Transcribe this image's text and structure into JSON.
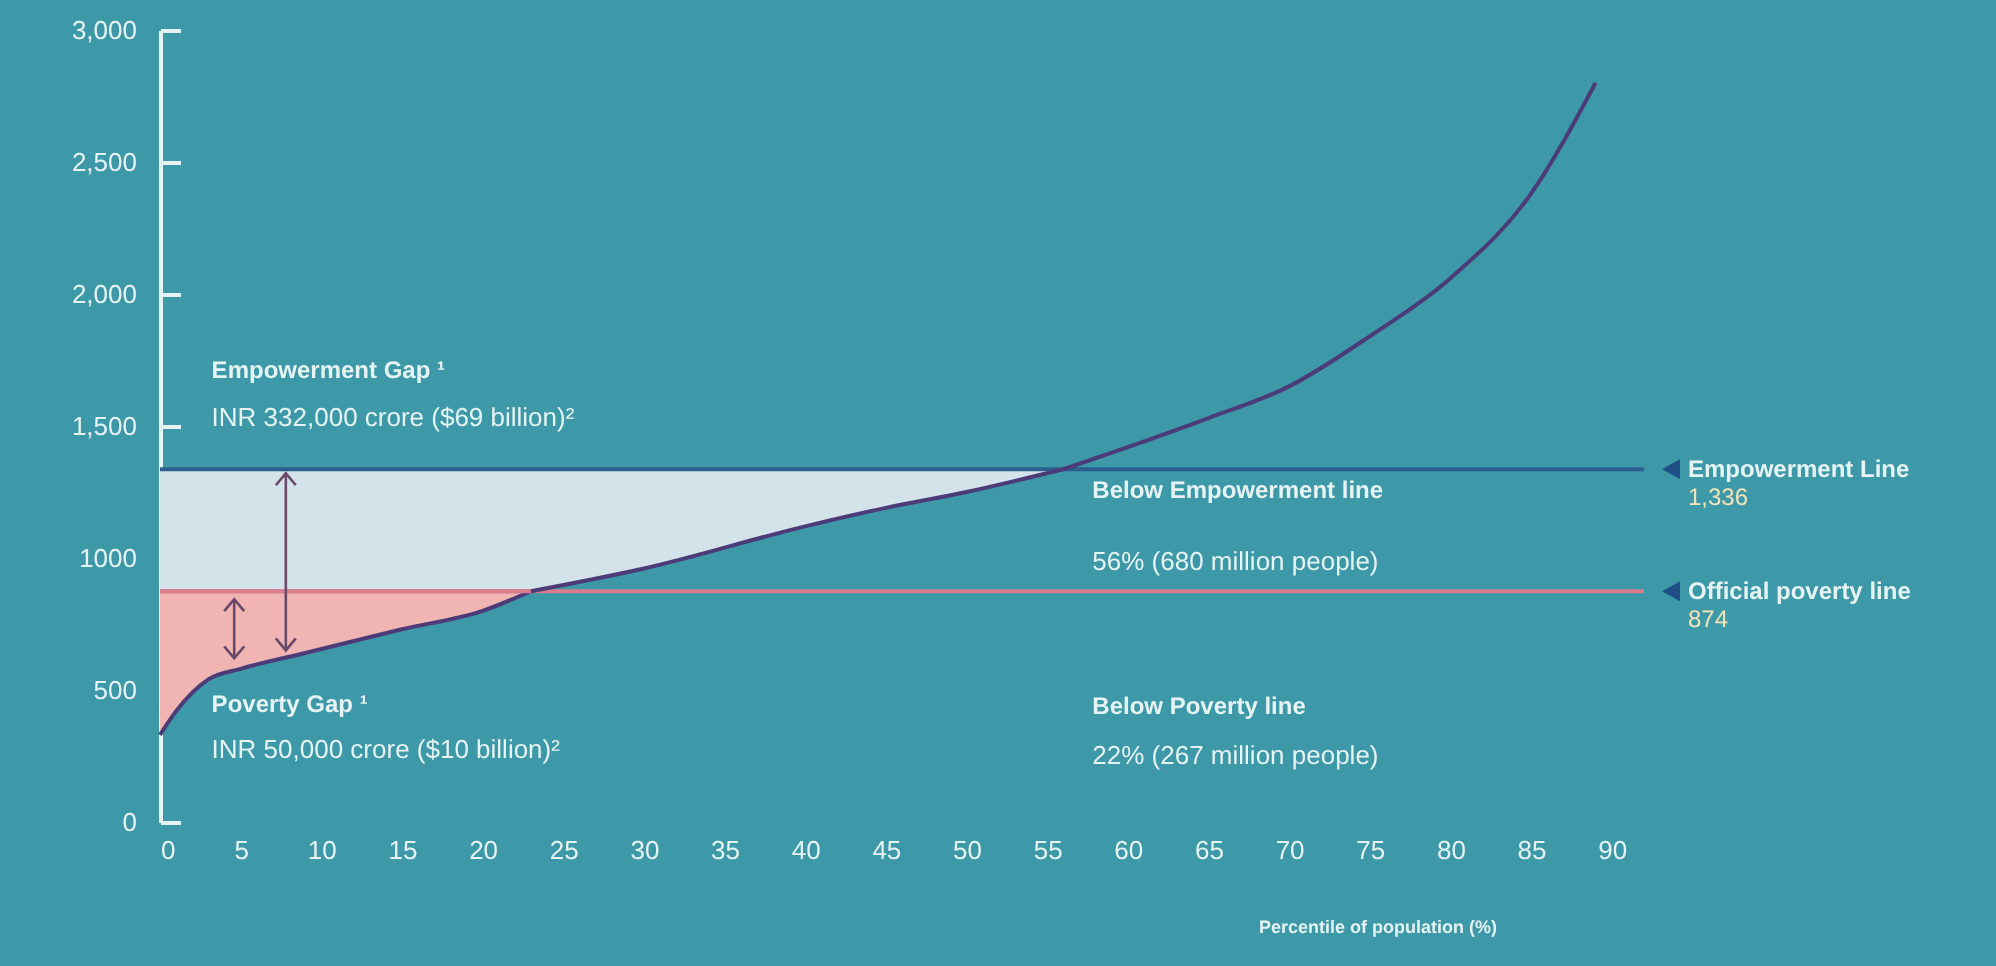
{
  "chart_data": {
    "type": "line",
    "xlabel": "Percentile of population (%)",
    "series": [
      {
        "color": "#4b3b78",
        "x": [
          0,
          1,
          2,
          3,
          5,
          9,
          15,
          20,
          23
        ],
        "values": [
          330,
          420,
          490,
          540,
          580,
          640,
          730,
          800,
          874
        ],
        "lower": [
          330,
          420,
          490,
          540,
          580,
          640,
          730,
          800,
          874
        ],
        "upper": [
          874,
          874,
          874,
          874,
          874,
          874,
          874,
          874,
          874
        ]
      },
      {
        "color": "#d97d8c",
        "x": [
          0,
          23
        ],
        "values": [
          874,
          874
        ],
        "lower": [
          874,
          874
        ],
        "upper": [
          1336,
          1336
        ]
      },
      {
        "color": "#4b3b78",
        "x": [
          23,
          30,
          40,
          45,
          50,
          56
        ],
        "values": [
          874,
          960,
          1120,
          1190,
          1250,
          1336
        ],
        "lower": [
          874,
          960,
          1120,
          1190,
          1250,
          1336
        ],
        "upper": [
          1336,
          1336,
          1336,
          1336,
          1336,
          1336
        ]
      },
      {
        "color": "#4b3b78",
        "x": [
          56,
          60,
          65,
          70,
          75,
          80,
          85,
          89
        ],
        "values": [
          1336,
          1420,
          1530,
          1650,
          1840,
          2060,
          2380,
          2800
        ]
      }
    ],
    "xlim": [
      0,
      92
    ],
    "xticks": [
      0,
      5,
      10,
      15,
      20,
      25,
      30,
      35,
      40,
      45,
      50,
      55,
      60,
      65,
      70,
      75,
      80,
      85,
      90
    ],
    "ylim": [
      0,
      3000
    ],
    "yticks": [
      {
        "value": 0,
        "label": "0"
      },
      {
        "value": 500,
        "label": "500"
      },
      {
        "value": 1000,
        "label": "1000"
      },
      {
        "value": 1500,
        "label": "1,500"
      },
      {
        "value": 2000,
        "label": "2,000"
      },
      {
        "value": 2500,
        "label": "2,500"
      },
      {
        "value": 3000,
        "label": "3,000"
      }
    ],
    "ref_lines": [
      {
        "axis": "y",
        "value": 1336,
        "label": "Empowerment Line",
        "color": "#2b5f8e"
      },
      {
        "axis": "y",
        "value": 874,
        "label": "Official poverty line",
        "color": "#d97d8c"
      }
    ],
    "annotations": [
      "Empowerment Gap ¹",
      "INR 332,000 crore ($69 billion)²",
      "Poverty Gap ¹",
      "INR 50,000 crore ($10 billion)²",
      "Below Empowerment line",
      "56% (680 million people)",
      "Below Poverty line",
      "22% (267 million people)",
      "1,336",
      "874"
    ]
  }
}
